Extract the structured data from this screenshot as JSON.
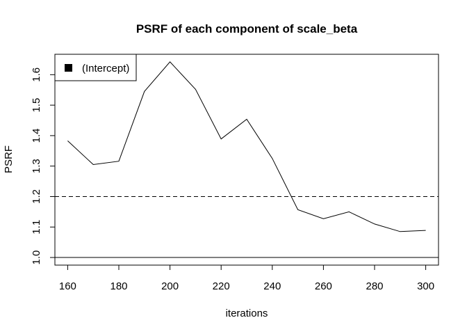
{
  "chart_data": {
    "type": "line",
    "title": "PSRF of each component of scale_beta",
    "xlabel": "iterations",
    "ylabel": "PSRF",
    "x": [
      160,
      170,
      180,
      190,
      200,
      210,
      220,
      230,
      240,
      250,
      260,
      270,
      280,
      290,
      300
    ],
    "series": [
      {
        "name": "(Intercept)",
        "color": "#000000",
        "values": [
          1.383,
          1.305,
          1.316,
          1.545,
          1.642,
          1.552,
          1.389,
          1.454,
          1.325,
          1.157,
          1.127,
          1.15,
          1.11,
          1.085,
          1.089
        ]
      }
    ],
    "xlim": [
      155,
      305
    ],
    "ylim": [
      0.975,
      1.667
    ],
    "xticks": [
      160,
      180,
      200,
      220,
      240,
      260,
      280,
      300
    ],
    "yticks": [
      1.0,
      1.1,
      1.2,
      1.3,
      1.4,
      1.5,
      1.6
    ],
    "xtick_labels": [
      "160",
      "180",
      "200",
      "220",
      "240",
      "260",
      "280",
      "300"
    ],
    "ytick_labels": [
      "1.0",
      "1.1",
      "1.2",
      "1.3",
      "1.4",
      "1.5",
      "1.6"
    ],
    "reference_lines": [
      {
        "y": 1.0,
        "style": "solid"
      },
      {
        "y": 1.2,
        "style": "dashed"
      }
    ],
    "legend_position": "top-left",
    "grid": false
  }
}
